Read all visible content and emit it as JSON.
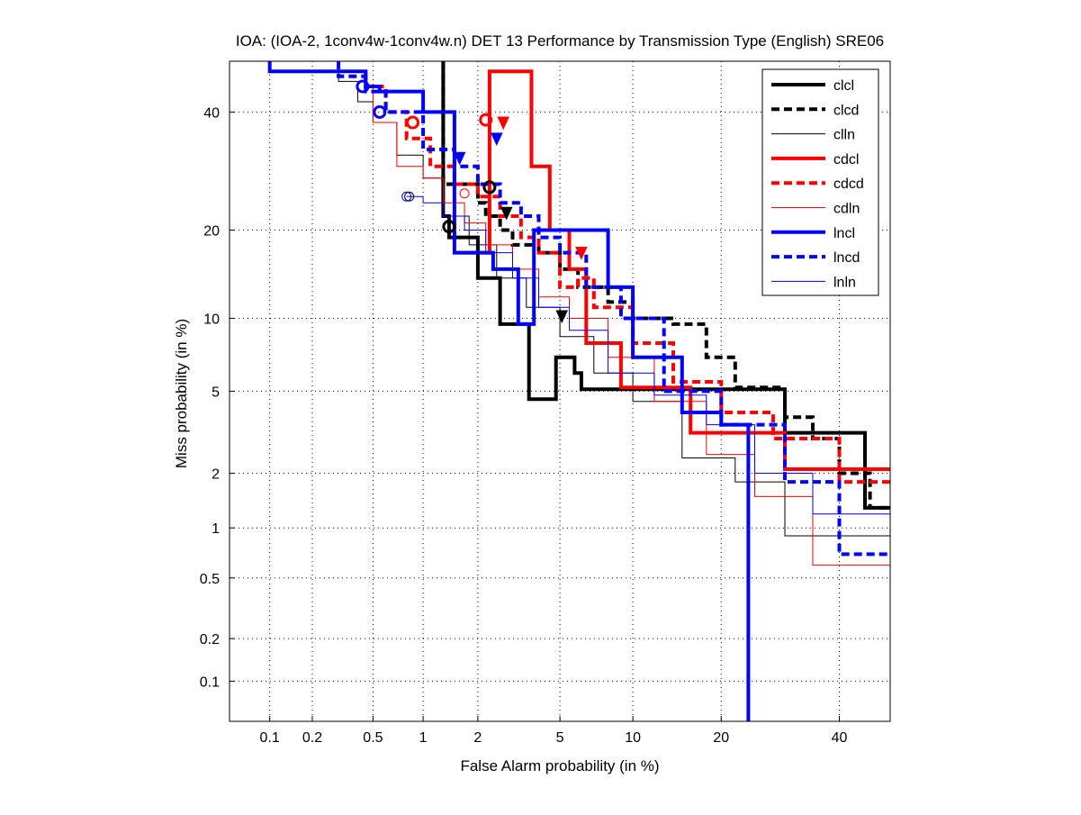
{
  "chart_data": {
    "type": "line",
    "subtype": "DET curve (normal-deviate axes)",
    "title": "IOA: (IOA-2, 1conv4w-1conv4w.n) DET 13 Performance by Transmission Type (English) SRE06",
    "xlabel": "False Alarm probability (in %)",
    "ylabel": "Miss probability (in %)",
    "xlim": [
      0.05,
      50
    ],
    "ylim": [
      0.05,
      50
    ],
    "xticks": [
      0.1,
      0.2,
      0.5,
      1,
      2,
      5,
      10,
      20,
      40
    ],
    "xtick_labels": [
      "0.1",
      "0.2",
      "0.5",
      "1",
      "2",
      "5",
      "10",
      "20",
      "40"
    ],
    "yticks": [
      0.1,
      0.2,
      0.5,
      1,
      2,
      5,
      10,
      20,
      40
    ],
    "ytick_labels": [
      "0.1",
      "0.2",
      "0.5",
      "1",
      "2",
      "5",
      "10",
      "20",
      "40"
    ],
    "grid": true,
    "legend_position": "top-right",
    "series": [
      {
        "name": "clcl",
        "color": "#000000",
        "style": "solid",
        "weight": "thick",
        "x": [
          1.3,
          1.3,
          1.4,
          1.4,
          2.0,
          2.0,
          2.6,
          2.6,
          3.6,
          3.6,
          4.8,
          4.8,
          5.8,
          5.8,
          6.2,
          6.2,
          10,
          20,
          30,
          30,
          45,
          45,
          50
        ],
        "y": [
          50,
          22,
          22,
          19,
          19,
          14,
          14,
          9.5,
          9.5,
          4.6,
          4.6,
          7,
          7,
          6,
          6,
          5.1,
          5.1,
          5.1,
          5.1,
          3.2,
          3.2,
          1.3,
          1.3
        ],
        "marker_fa": 1.4,
        "marker_miss": 20.5,
        "marker_shape": "circle"
      },
      {
        "name": "clcd",
        "color": "#000000",
        "style": "dashed",
        "weight": "thick",
        "x": [
          1.3,
          1.3,
          2.0,
          2.2,
          2.6,
          3.0,
          4.0,
          5.0,
          6.0,
          8.0,
          10,
          14,
          18,
          22,
          30,
          35,
          40,
          46,
          50
        ],
        "y": [
          50,
          33,
          27,
          24,
          22,
          20,
          18,
          17,
          15,
          13,
          11.5,
          10,
          9.5,
          7,
          5.2,
          3.8,
          3.0,
          2.0,
          1.3
        ],
        "marker_fa": 2.3,
        "marker_miss": 26.5,
        "marker_shape": "circle"
      },
      {
        "name": "clln",
        "color": "#000000",
        "style": "solid",
        "weight": "thin",
        "x": [
          0.3,
          0.4,
          0.5,
          0.7,
          1.0,
          1.3,
          1.8,
          2.5,
          3.5,
          5.0,
          7.0,
          10,
          15,
          22,
          30,
          40,
          50
        ],
        "y": [
          50,
          46,
          42,
          38,
          32,
          28,
          22,
          18,
          14,
          11,
          8.5,
          6,
          4.5,
          2.4,
          1.8,
          0.9,
          0.9
        ],
        "marker_fa": 0.83,
        "marker_miss": 25,
        "marker_shape": "circle"
      },
      {
        "name": "cdcl",
        "color": "#ff0000",
        "style": "solid",
        "weight": "thick",
        "x": [
          1.6,
          1.6,
          2.3,
          2.3,
          2.8,
          3.7,
          3.7,
          4.5,
          4.5,
          5.5,
          6.5,
          9.0,
          9.0,
          16,
          16,
          30,
          50
        ],
        "y": [
          17,
          17,
          17,
          48,
          48,
          48,
          30,
          30,
          20,
          20,
          15,
          8,
          8,
          5.2,
          5.2,
          3.2,
          2.1
        ],
        "marker_fa": 2.2,
        "marker_miss": 38.5,
        "marker_shape": "circle"
      },
      {
        "name": "cdcd",
        "color": "#ff0000",
        "style": "dashed",
        "weight": "thick",
        "x": [
          0.45,
          0.6,
          0.8,
          1.1,
          1.5,
          2.0,
          2.6,
          3.3,
          4.0,
          5.0,
          6.0,
          7.0,
          10,
          14,
          20,
          28,
          40,
          50
        ],
        "y": [
          48,
          45,
          40,
          35,
          30,
          27,
          25,
          22,
          19,
          17,
          13,
          14,
          11,
          8,
          5.5,
          4,
          3,
          1.8
        ],
        "marker_fa": 0.87,
        "marker_miss": 38,
        "marker_shape": "circle"
      },
      {
        "name": "cdln",
        "color": "#ff0000",
        "style": "solid",
        "weight": "thin",
        "x": [
          0.5,
          0.7,
          1.0,
          1.3,
          1.7,
          2.2,
          3.0,
          4.0,
          5.5,
          8.0,
          12,
          18,
          25,
          35,
          45,
          50
        ],
        "y": [
          45,
          38,
          30,
          28,
          24,
          21,
          18,
          15,
          12,
          10,
          7,
          4.5,
          2.5,
          1.5,
          0.6,
          0.6
        ],
        "marker_fa": 1.7,
        "marker_miss": 25.5,
        "marker_shape": "circle"
      },
      {
        "name": "lncl",
        "color": "#0000ff",
        "style": "solid",
        "weight": "thick",
        "x": [
          0.1,
          0.45,
          0.55,
          1.0,
          1.5,
          1.5,
          2.4,
          3.2,
          3.8,
          3.8,
          5.0,
          8.0,
          10,
          15,
          20,
          24,
          24
        ],
        "y": [
          50,
          48,
          45,
          44,
          40,
          17,
          17,
          15,
          9.5,
          19,
          20,
          20,
          13,
          7,
          4,
          3.5,
          0.01
        ],
        "marker_fa": 0.55,
        "marker_miss": 40,
        "marker_shape": "circle"
      },
      {
        "name": "lncd",
        "color": "#0000ff",
        "style": "dashed",
        "weight": "thick",
        "x": [
          0.3,
          0.45,
          0.6,
          1.0,
          1.5,
          2.0,
          2.6,
          3.3,
          4.0,
          5.0,
          6.5,
          9.0,
          13,
          20,
          30,
          40,
          50
        ],
        "y": [
          50,
          47,
          44,
          40,
          33,
          30,
          27,
          24,
          22,
          19,
          17,
          13,
          10,
          5,
          3.5,
          1.8,
          0.7
        ],
        "marker_fa": 0.43,
        "marker_miss": 45,
        "marker_shape": "circle"
      },
      {
        "name": "lnln",
        "color": "#0000ff",
        "style": "solid",
        "weight": "thin",
        "x": [
          0.8,
          1.0,
          1.3,
          1.7,
          2.2,
          3.0,
          4.0,
          5.5,
          8.0,
          12,
          18,
          25,
          35,
          45,
          50
        ],
        "y": [
          25,
          25,
          24,
          22,
          20,
          17,
          14,
          11,
          9,
          6,
          4.8,
          3.5,
          2,
          1.2,
          1.2
        ],
        "marker_fa": 0.8,
        "marker_miss": 25,
        "marker_shape": "circle"
      }
    ],
    "min_dcf_points": [
      {
        "series": "clcl",
        "fa": 5.1,
        "miss": 10.2,
        "shape": "triangle-down"
      },
      {
        "series": "clcd",
        "fa": 2.8,
        "miss": 22.5,
        "shape": "triangle-down"
      },
      {
        "series": "cdcl",
        "fa": 2.7,
        "miss": 38,
        "shape": "triangle-down"
      },
      {
        "series": "cdcd",
        "fa": 6.2,
        "miss": 17,
        "shape": "triangle-down"
      },
      {
        "series": "lncl",
        "fa": 1.6,
        "miss": 31.5,
        "shape": "triangle-down"
      },
      {
        "series": "lncd",
        "fa": 2.5,
        "miss": 35,
        "shape": "triangle-down"
      }
    ]
  }
}
